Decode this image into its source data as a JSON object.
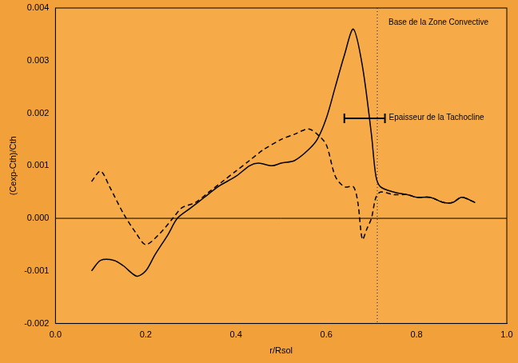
{
  "chart_data": {
    "type": "line",
    "x_label": "r/Rsol",
    "y_label": "(Cexp-Cth)/Cth",
    "xlim": [
      0,
      1.0
    ],
    "xticks": [
      {
        "value": 0,
        "label": "0.0"
      },
      0.2,
      0.4,
      0.6,
      0.8,
      {
        "value": 1.0,
        "label": "1.0"
      }
    ],
    "ylim": [
      -0.002,
      0.004
    ],
    "yticks": [
      -0.002,
      -0.001,
      {
        "value": 0,
        "label": "0.000"
      },
      0.001,
      0.002,
      0.003,
      0.004
    ],
    "grid": false,
    "series": [
      {
        "color": "#000000",
        "line_style": "solid",
        "x": [
          0.08,
          0.1,
          0.13,
          0.15,
          0.18,
          0.2,
          0.22,
          0.25,
          0.27,
          0.3,
          0.33,
          0.36,
          0.4,
          0.43,
          0.45,
          0.48,
          0.5,
          0.53,
          0.56,
          0.58,
          0.6,
          0.62,
          0.64,
          0.66,
          0.68,
          0.7,
          0.71,
          0.72,
          0.75,
          0.78,
          0.8,
          0.83,
          0.86,
          0.88,
          0.9,
          0.93
        ],
        "values": [
          -0.001,
          -0.0008,
          -0.0008,
          -0.0009,
          -0.0011,
          -0.001,
          -0.0007,
          -0.0003,
          0.0,
          0.0002,
          0.0004,
          0.0006,
          0.0008,
          0.001,
          0.00105,
          0.001,
          0.00105,
          0.0011,
          0.0013,
          0.0015,
          0.0019,
          0.0025,
          0.0031,
          0.0036,
          0.0029,
          0.0016,
          0.0008,
          0.0006,
          0.0005,
          0.00045,
          0.0004,
          0.0004,
          0.0003,
          0.0003,
          0.0004,
          0.0003
        ]
      },
      {
        "color": "#000000",
        "line_style": "dashed",
        "x": [
          0.08,
          0.1,
          0.12,
          0.15,
          0.18,
          0.2,
          0.23,
          0.26,
          0.28,
          0.31,
          0.34,
          0.37,
          0.4,
          0.43,
          0.46,
          0.5,
          0.53,
          0.56,
          0.58,
          0.6,
          0.62,
          0.64,
          0.66,
          0.67,
          0.68,
          0.69,
          0.7,
          0.71,
          0.72,
          0.75,
          0.78,
          0.8,
          0.83,
          0.86,
          0.88,
          0.9,
          0.93
        ],
        "values": [
          0.0007,
          0.0009,
          0.0006,
          0.0001,
          -0.0003,
          -0.0005,
          -0.0003,
          0.0,
          0.0002,
          0.0003,
          0.0005,
          0.0007,
          0.0009,
          0.0011,
          0.0013,
          0.0015,
          0.0016,
          0.0017,
          0.0016,
          0.0014,
          0.0008,
          0.0006,
          0.0006,
          0.0003,
          -0.0004,
          -0.0002,
          0.0,
          0.0004,
          0.0005,
          0.00045,
          0.00045,
          0.0004,
          0.0004,
          0.0003,
          0.0003,
          0.0004,
          0.0003
        ]
      }
    ],
    "reference_lines": {
      "y": 0
    },
    "annotations": [
      {
        "text": "Base de la Zone Convective",
        "x": 0.713,
        "y": 0.0038,
        "line_style": "dotted"
      },
      {
        "text": "Epaisseur de la Tachocline",
        "x": 0.685,
        "y": 0.0019,
        "xerr": 0.045
      }
    ]
  }
}
